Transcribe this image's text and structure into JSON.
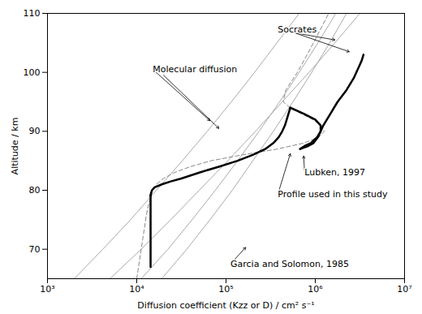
{
  "chart_data": {
    "type": "line",
    "xlabel": "Diffusion coefficient (Kzz or D) / cm² s⁻¹",
    "ylabel": "Altitude / km",
    "log": "x",
    "grid": false,
    "xlim": [
      1000,
      10000000
    ],
    "xticks": [
      {
        "value": 1000,
        "label": "10³"
      },
      {
        "value": 10000,
        "label": "10⁴"
      },
      {
        "value": 100000,
        "label": "10⁵"
      },
      {
        "value": 1000000,
        "label": "10⁶"
      },
      {
        "value": 10000000,
        "label": "10⁷"
      }
    ],
    "ylim": [
      65,
      110
    ],
    "yticks": [
      70,
      80,
      90,
      100,
      110
    ],
    "series": [
      {
        "color": "#aaaaaa",
        "line_style": "solid",
        "x": [
          5011.872,
          11220.18,
          23988.33,
          50118.72,
          104712.9,
          213796.2,
          426579.5,
          851138.0,
          1659587,
          3162278
        ],
        "values": [
          65,
          70,
          75,
          80,
          85,
          90,
          95,
          100,
          105,
          110
        ]
      },
      {
        "color": "#aaaaaa",
        "line_style": "solid",
        "x": [
          11220.18,
          22387.21,
          41686.94,
          75857.76,
          134896.3,
          234422.9,
          398107.2,
          660693.4,
          1071519,
          1698244
        ],
        "values": [
          65,
          70,
          75,
          80,
          85,
          90,
          95,
          100,
          105,
          110
        ]
      },
      {
        "color": "#aaaaaa",
        "line_style": "solid",
        "x": [
          19054.61,
          36307.81,
          66069.34,
          117489.8,
          199526.2,
          338844.2,
          562341.3,
          912010.8,
          1445440,
          2238721
        ],
        "values": [
          65,
          70,
          75,
          80,
          85,
          90,
          95,
          100,
          105,
          110
        ]
      },
      {
        "color": "#aaaaaa",
        "line_style": "solid",
        "x": [
          1995.262,
          4168.694,
          8511.38,
          16595.87,
          32359.37,
          61659.5,
          114815.4,
          208929.6,
          371535.2,
          660693.4
        ],
        "values": [
          65,
          70,
          75,
          80,
          85,
          90,
          95,
          100,
          105,
          110
        ]
      },
      {
        "color": "#888888",
        "line_style": "dashed",
        "x": [
          10000,
          10715.19,
          11220.18,
          11748.98,
          12302.69,
          12882.5,
          13803.84,
          15135.61,
          16595.87,
          19952.62,
          26302.68,
          39810.72,
          67608.3,
          151356.1,
          380189.4,
          741310.2,
          1096478,
          1258925,
          1174898,
          933254.3,
          691831.0,
          524807.5,
          436515.8,
          467735.1,
          630957.3,
          954992.6,
          1412538
        ],
        "values": [
          65,
          68,
          70,
          72,
          74,
          76,
          78,
          80,
          81,
          82,
          83,
          84,
          85,
          86,
          87,
          88,
          89,
          90,
          91,
          92,
          93,
          94,
          95,
          97,
          100,
          105,
          110
        ]
      },
      {
        "color": "#000000",
        "line_style": "solid",
        "x": [
          14288.94,
          14288.94
        ],
        "values": [
          67.0,
          79.2
        ]
      },
      {
        "color": "#000000",
        "line_style": "solid",
        "x": [
          14288.94,
          14454.4,
          14791.08,
          15848.93,
          19054.61,
          23988.33,
          31622.78,
          50118.72,
          83176.38,
          134896.3,
          199526.2,
          275422.9,
          338844.2,
          389045.1,
          426579.5,
          457088.2,
          478630.1,
          501187.2,
          524807.5
        ],
        "values": [
          79,
          79.5,
          80,
          80.5,
          81,
          81.5,
          82,
          83,
          84,
          85,
          86,
          87,
          88,
          89,
          90,
          91,
          92,
          93,
          94
        ]
      },
      {
        "color": "#000000",
        "line_style": "solid",
        "x": [
          524807.5,
          741310.2,
          1000000,
          1148154,
          1148154,
          1047129,
          891250.9,
          758577.6,
          676083.0
        ],
        "values": [
          94,
          93,
          92,
          91,
          90,
          89,
          88,
          87.5,
          87
        ]
      },
      {
        "color": "#000000",
        "line_style": "solid",
        "x": [
          676083.0,
          831763.8,
          954992.6,
          1071519,
          1148154,
          1230269,
          1348963,
          1479108,
          1621810,
          1778279,
          1995262,
          2238721,
          2454709,
          2691535,
          2884032,
          3090295,
          3311311,
          3467369
        ],
        "values": [
          87,
          87.5,
          88,
          89,
          90,
          91,
          92,
          93,
          94,
          95,
          96,
          97,
          98,
          99,
          100,
          101,
          102,
          103
        ]
      }
    ],
    "annotations": [
      {
        "text": "Socrates",
        "x": 380189.4,
        "y": 107.2,
        "arrows": [
          {
            "from_x": 380189.4,
            "from_y": 107.2,
            "x": 1659587,
            "y": 105.5
          },
          {
            "from_x": 562341.3,
            "from_y": 106.8,
            "x": 2398833,
            "y": 103.5
          }
        ]
      },
      {
        "text": "Molecular diffusion",
        "x": 15135.61,
        "y": 100.5,
        "arrows": [
          {
            "from_x": 15135.61,
            "from_y": 100.5,
            "x": 66069.34,
            "y": 91.8
          },
          {
            "from_x": 19054.61,
            "from_y": 99.8,
            "x": 83176.38,
            "y": 90.5
          }
        ]
      },
      {
        "text": "Lubken, 1997",
        "x": 758577.6,
        "y": 83.0,
        "arrows": [
          {
            "from_x": 758577.6,
            "from_y": 83.0,
            "x": 741310.2,
            "y": 85.8
          }
        ]
      },
      {
        "text": "Profile used in this study",
        "x": 380189.4,
        "y": 79.3,
        "arrows": [
          {
            "from_x": 380189.4,
            "from_y": 79.3,
            "x": 524807.5,
            "y": 86.2
          }
        ]
      },
      {
        "text": "Garcia and Solomon, 1985",
        "x": 112201.8,
        "y": 67.5,
        "arrows": [
          {
            "from_x": 112201.8,
            "from_y": 67.5,
            "x": 165958.7,
            "y": 70.3
          }
        ]
      }
    ]
  }
}
